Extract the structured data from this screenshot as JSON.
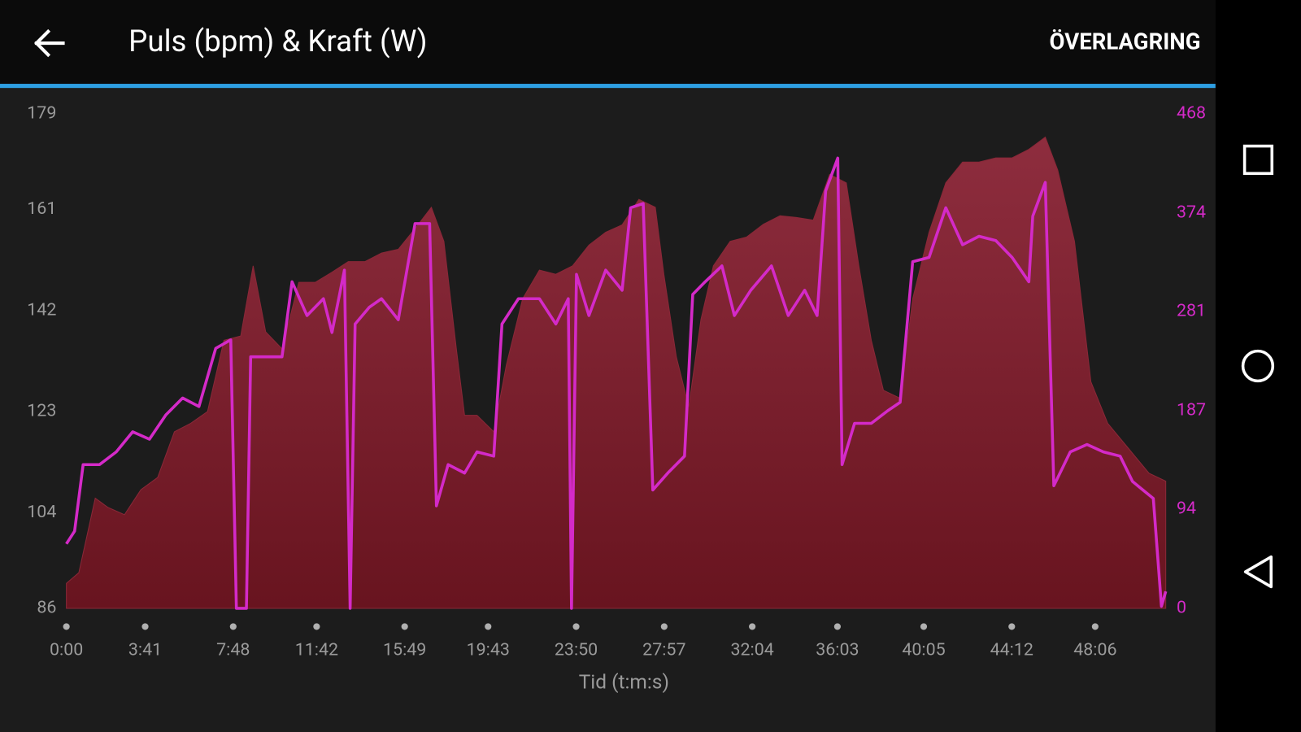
{
  "toolbar": {
    "action": "ÖVERLAGRING"
  },
  "chart_data": {
    "type": "area-line",
    "title": "Puls (bpm) & Kraft (W)",
    "x_label": "Tid (t:m:s)",
    "xlim": [
      0,
      3084
    ],
    "xticks": [
      {
        "value": 0,
        "label": "0:00"
      },
      {
        "value": 221,
        "label": "3:41"
      },
      {
        "value": 468,
        "label": "7:48"
      },
      {
        "value": 702,
        "label": "11:42"
      },
      {
        "value": 949,
        "label": "15:49"
      },
      {
        "value": 1183,
        "label": "19:43"
      },
      {
        "value": 1430,
        "label": "23:50"
      },
      {
        "value": 1677,
        "label": "27:57"
      },
      {
        "value": 1924,
        "label": "32:04"
      },
      {
        "value": 2163,
        "label": "36:03"
      },
      {
        "value": 2405,
        "label": "40:05"
      },
      {
        "value": 2652,
        "label": "44:12"
      },
      {
        "value": 2886,
        "label": "48:06"
      }
    ],
    "ylim": [
      86,
      179
    ],
    "yticks": [
      86,
      104,
      123,
      142,
      161,
      179
    ],
    "y2lim": [
      0,
      468
    ],
    "y2ticks": [
      0,
      94,
      187,
      281,
      374,
      468
    ],
    "grid": false,
    "series": [
      {
        "kind": "area",
        "color": "#8a2838",
        "axis": "y",
        "x": [
          0,
          35,
          81,
          116,
          163,
          209,
          256,
          303,
          349,
          396,
          442,
          489,
          524,
          559,
          605,
          652,
          698,
          745,
          791,
          838,
          884,
          931,
          978,
          1024,
          1059,
          1094,
          1117,
          1152,
          1199,
          1234,
          1280,
          1327,
          1373,
          1420,
          1466,
          1513,
          1559,
          1606,
          1652,
          1676,
          1711,
          1746,
          1780,
          1815,
          1862,
          1908,
          1955,
          2002,
          2048,
          2095,
          2141,
          2188,
          2223,
          2258,
          2292,
          2339,
          2374,
          2420,
          2467,
          2514,
          2560,
          2607,
          2653,
          2700,
          2746,
          2781,
          2828,
          2874,
          2921,
          2979,
          3037,
          3084
        ],
        "values": [
          90.7,
          92.7,
          106.7,
          105,
          103.6,
          108.3,
          110.6,
          119.2,
          120.8,
          123,
          136.4,
          137.2,
          150.4,
          138,
          134.8,
          147.3,
          147.3,
          149.2,
          151.2,
          151.2,
          152.8,
          153.5,
          157.4,
          161.4,
          155,
          134.8,
          122.3,
          122.3,
          119.2,
          131.7,
          144.2,
          149.6,
          148.8,
          150.4,
          154.3,
          156.7,
          158.1,
          162.9,
          161.4,
          148.8,
          133.3,
          123.9,
          140.3,
          150.4,
          155,
          155.8,
          158.2,
          159.8,
          159.5,
          159,
          167.6,
          166,
          150.4,
          136.4,
          127,
          125.5,
          144.2,
          156.7,
          166,
          169.9,
          169.9,
          170.7,
          170.7,
          172.3,
          174.6,
          168.4,
          155,
          128.6,
          120.8,
          116.1,
          111.4,
          109.9
        ]
      },
      {
        "kind": "line",
        "color": "#d42ac8",
        "axis": "y2",
        "x": [
          0,
          23,
          47,
          93,
          140,
          186,
          233,
          279,
          326,
          372,
          419,
          461,
          477,
          505,
          517,
          559,
          605,
          633,
          675,
          721,
          745,
          780,
          796,
          810,
          850,
          884,
          931,
          978,
          1019,
          1038,
          1071,
          1117,
          1152,
          1199,
          1222,
          1268,
          1327,
          1373,
          1408,
          1417,
          1431,
          1466,
          1513,
          1559,
          1583,
          1618,
          1645,
          1687,
          1734,
          1757,
          1792,
          1839,
          1874,
          1920,
          1978,
          2025,
          2071,
          2106,
          2130,
          2164,
          2176,
          2211,
          2258,
          2304,
          2339,
          2374,
          2420,
          2467,
          2514,
          2560,
          2607,
          2653,
          2700,
          2711,
          2746,
          2770,
          2816,
          2863,
          2909,
          2956,
          2991,
          3049,
          3072,
          3084
        ],
        "values": [
          61,
          73,
          136,
          136,
          148,
          167,
          160,
          183,
          199,
          191,
          246,
          254,
          0,
          0,
          238,
          238,
          238,
          309,
          277,
          293,
          261,
          320,
          0,
          269,
          285,
          293,
          273,
          364,
          364,
          97,
          136,
          128,
          148,
          144,
          269,
          293,
          293,
          269,
          293,
          0,
          316,
          277,
          320,
          301,
          379,
          383,
          112,
          128,
          144,
          297,
          309,
          324,
          277,
          301,
          324,
          277,
          301,
          277,
          395,
          426,
          136,
          175,
          175,
          187,
          195,
          328,
          332,
          379,
          344,
          352,
          348,
          332,
          309,
          371,
          403,
          116,
          148,
          155,
          148,
          144,
          120,
          104,
          2,
          16
        ]
      }
    ]
  }
}
